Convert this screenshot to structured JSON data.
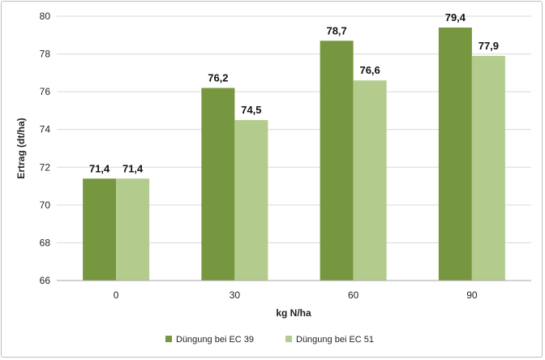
{
  "chart_data": {
    "type": "bar",
    "title": "",
    "xlabel": "kg N/ha",
    "ylabel": "Ertrag  (dt/ha)",
    "categories": [
      "0",
      "30",
      "60",
      "90"
    ],
    "series": [
      {
        "name": "Düngung bei EC 39",
        "values": [
          71.4,
          76.2,
          78.7,
          79.4
        ],
        "labels": [
          "71,4",
          "76,2",
          "78,7",
          "79,4"
        ],
        "color": "#76973f"
      },
      {
        "name": "Düngung bei EC 51",
        "values": [
          71.4,
          74.5,
          76.6,
          77.9
        ],
        "labels": [
          "71,4",
          "74,5",
          "76,6",
          "77,9"
        ],
        "color": "#b3cc8e"
      }
    ],
    "ylim": [
      66,
      80
    ],
    "yticks": [
      "66",
      "68",
      "70",
      "72",
      "74",
      "76",
      "78",
      "80"
    ],
    "grid": true,
    "legend": "bottom"
  }
}
